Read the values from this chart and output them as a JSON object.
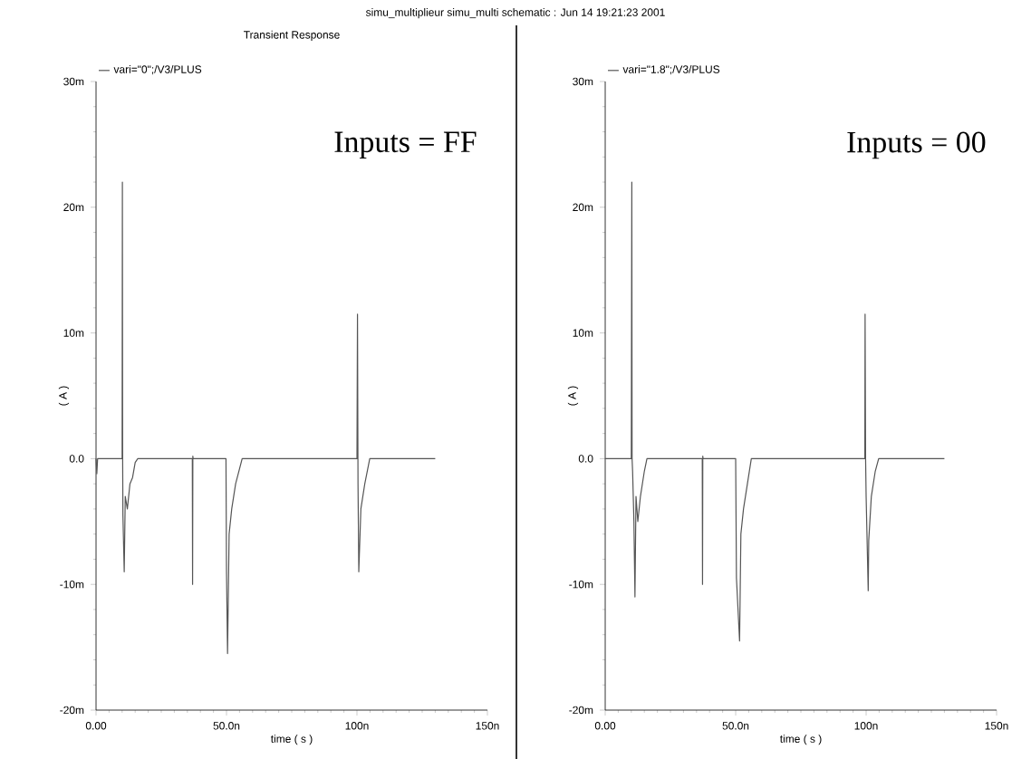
{
  "chart_data": [
    {
      "type": "line",
      "title": "simu_multiplieur simu_multi schematic : Jun 14 19:21:23 2001",
      "subtitle": "Transient Response",
      "xlabel": "time ( s )",
      "ylabel": "( A )",
      "series": [
        {
          "name": "vari=\"0\";/V3/PLUS",
          "color": "#555555",
          "x": [
            0,
            0.3,
            0.6,
            10.0,
            10.1,
            10.2,
            10.3,
            10.8,
            11.2,
            12,
            13,
            14,
            15,
            16,
            36.9,
            37.0,
            37.1,
            37.2,
            49.8,
            50.0,
            50.4,
            51,
            52,
            53.5,
            56,
            100.0,
            100.2,
            100.4,
            100.7,
            101.5,
            103,
            104.9,
            130
          ],
          "values": [
            0,
            -1.2,
            0,
            0,
            22,
            0,
            -4.5,
            -9,
            -3,
            -4,
            -2,
            -1.5,
            -0.3,
            0,
            0,
            -10,
            0.2,
            0,
            0,
            -9,
            -15.5,
            -6,
            -4,
            -2,
            0,
            0,
            11.5,
            -2,
            -9,
            -4,
            -2,
            0,
            0
          ]
        }
      ],
      "annotations": [
        "Inputs = FF"
      ],
      "xlim": [
        0,
        150
      ],
      "ylim": [
        -20,
        30
      ],
      "xticks": [
        {
          "value": 0,
          "label": "0.00"
        },
        {
          "value": 50,
          "label": "50.0n"
        },
        {
          "value": 100,
          "label": "100n"
        },
        {
          "value": 150,
          "label": "150n"
        }
      ],
      "yticks": [
        {
          "value": -20,
          "label": "-20m"
        },
        {
          "value": -10,
          "label": "-10m"
        },
        {
          "value": 0,
          "label": "0.0"
        },
        {
          "value": 10,
          "label": "10m"
        },
        {
          "value": 20,
          "label": "20m"
        },
        {
          "value": 30,
          "label": "30m"
        }
      ],
      "legend": "top left",
      "grid": false
    },
    {
      "type": "line",
      "xlabel": "time ( s )",
      "ylabel": "( A )",
      "series": [
        {
          "name": "vari=\"1.8\";/V3/PLUS",
          "color": "#555555",
          "x": [
            0,
            10.0,
            10.2,
            10.3,
            10.5,
            11.0,
            11.4,
            11.8,
            12.5,
            13.5,
            15,
            16,
            37.2,
            37.3,
            37.4,
            37.5,
            50.0,
            50.3,
            51.5,
            52,
            53,
            54.5,
            56,
            99.5,
            99.6,
            99.8,
            100.0,
            100.8,
            101.0,
            102,
            103.5,
            104.8,
            130
          ],
          "values": [
            0,
            0,
            22,
            0,
            -1,
            -5,
            -11,
            -3,
            -5,
            -3,
            -1,
            0,
            0,
            -10,
            0.2,
            0,
            0,
            -9.5,
            -14.5,
            -6,
            -4,
            -2,
            0,
            0,
            11.5,
            0,
            -3,
            -10.5,
            -6.5,
            -3,
            -1,
            0,
            0
          ]
        }
      ],
      "annotations": [
        "Inputs = 00"
      ],
      "xlim": [
        0,
        150
      ],
      "ylim": [
        -20,
        30
      ],
      "xticks": [
        {
          "value": 0,
          "label": "0.00"
        },
        {
          "value": 50,
          "label": "50.0n"
        },
        {
          "value": 100,
          "label": "100n"
        },
        {
          "value": 150,
          "label": "150n"
        }
      ],
      "yticks": [
        {
          "value": -20,
          "label": "-20m"
        },
        {
          "value": -10,
          "label": "-10m"
        },
        {
          "value": 0,
          "label": "0.0"
        },
        {
          "value": 10,
          "label": "10m"
        },
        {
          "value": 20,
          "label": "20m"
        },
        {
          "value": 30,
          "label": "30m"
        }
      ],
      "legend": "top left",
      "grid": false
    }
  ]
}
